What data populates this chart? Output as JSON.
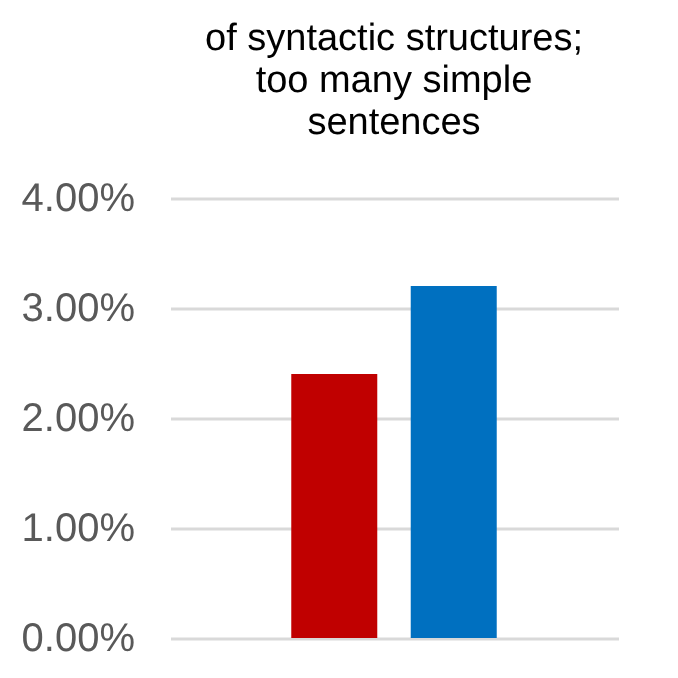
{
  "chart_data": {
    "type": "bar",
    "title": "of syntactic structures;\ntoo many simple\nsentences",
    "categories": [
      null,
      null
    ],
    "values": [
      2.4,
      3.2
    ],
    "colors": [
      "#c00000",
      "#0070c0"
    ],
    "ylim": [
      0,
      4
    ],
    "yticks": [
      {
        "value": 0,
        "label": "0.00%"
      },
      {
        "value": 1,
        "label": "1.00%"
      },
      {
        "value": 2,
        "label": "2.00%"
      },
      {
        "value": 3,
        "label": "3.00%"
      },
      {
        "value": 4,
        "label": "4.00%"
      }
    ],
    "grid": "y"
  }
}
